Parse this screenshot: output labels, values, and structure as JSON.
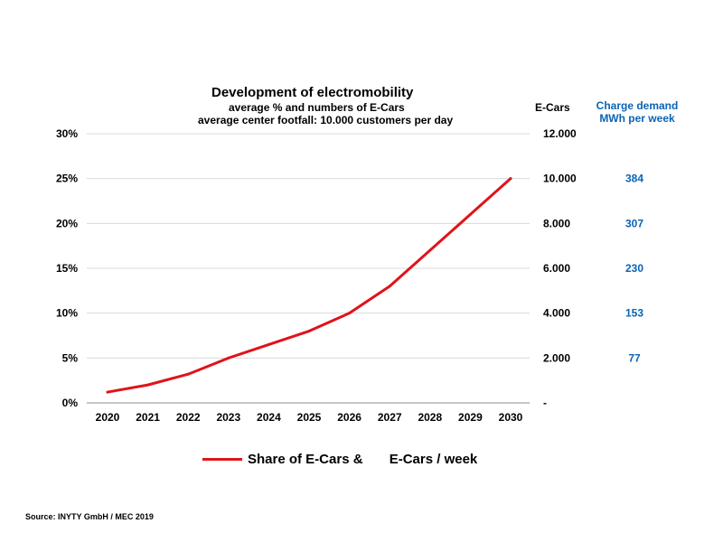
{
  "chart_data": {
    "type": "line",
    "title": "Development of electromobility",
    "subtitle_lines": [
      "average % and numbers of E-Cars",
      "average center footfall: 10.000 customers per day"
    ],
    "x": [
      "2020",
      "2021",
      "2022",
      "2023",
      "2024",
      "2025",
      "2026",
      "2027",
      "2028",
      "2029",
      "2030"
    ],
    "series": [
      {
        "name": "Share of E-Cars &       E-Cars / week",
        "values": [
          1.2,
          2.0,
          3.2,
          5.0,
          6.5,
          8.0,
          10.0,
          13.0,
          17.0,
          21.0,
          25.0
        ],
        "color": "#e0131a"
      }
    ],
    "ylim": [
      0,
      30
    ],
    "y_ticks": [
      "0%",
      "5%",
      "10%",
      "15%",
      "20%",
      "25%",
      "30%"
    ],
    "y2_label": "E-Cars",
    "y2_ticks": [
      "-",
      "2.000",
      "4.000",
      "6.000",
      "8.000",
      "10.000",
      "12.000"
    ],
    "y3_label_lines": [
      "Charge demand",
      "MWh per week"
    ],
    "y3_values": [
      "77",
      "153",
      "230",
      "307",
      "384"
    ],
    "y3_color": "#0b63b5",
    "grid": true,
    "legend_position": "bottom"
  },
  "footer": {
    "source": "Source: INYTY GmbH /  MEC 2019"
  }
}
